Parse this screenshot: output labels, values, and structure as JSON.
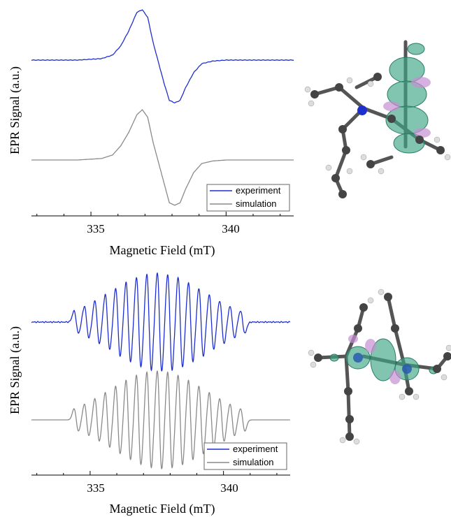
{
  "chart_data": [
    {
      "type": "line",
      "xlabel": "Magnetic Field (mT)",
      "ylabel": "EPR Signal (a.u.)",
      "xlim": [
        332.8,
        342.5
      ],
      "xticks": [
        335,
        340
      ],
      "yticks_shown": false,
      "legend_position": "bottom-right",
      "series": [
        {
          "name": "experiment",
          "color": "#1f2fcf",
          "offset": 1,
          "shape": "first-derivative, unresolved hyperfine",
          "x": [
            332.8,
            334.5,
            335.4,
            335.8,
            336.1,
            336.4,
            336.7,
            336.9,
            337.1,
            337.3,
            337.5,
            337.7,
            337.9,
            338.1,
            338.3,
            338.5,
            338.8,
            339.1,
            339.5,
            340.0,
            342.5
          ],
          "values": [
            0.0,
            0.0,
            0.03,
            0.1,
            0.28,
            0.58,
            0.95,
            1.0,
            0.85,
            0.35,
            -0.05,
            -0.45,
            -0.8,
            -0.85,
            -0.8,
            -0.55,
            -0.25,
            -0.07,
            -0.02,
            0.0,
            0.0
          ]
        },
        {
          "name": "simulation",
          "color": "#8a8a8a",
          "offset": 0,
          "shape": "first-derivative, unresolved hyperfine",
          "x": [
            332.8,
            334.5,
            335.4,
            335.8,
            336.1,
            336.4,
            336.7,
            336.9,
            337.1,
            337.3,
            337.5,
            337.7,
            337.9,
            338.1,
            338.3,
            338.5,
            338.8,
            339.1,
            339.5,
            340.0,
            342.5
          ],
          "values": [
            0.0,
            0.0,
            0.03,
            0.1,
            0.28,
            0.55,
            0.9,
            1.0,
            0.85,
            0.35,
            -0.05,
            -0.45,
            -0.85,
            -0.9,
            -0.85,
            -0.58,
            -0.25,
            -0.07,
            -0.02,
            0.0,
            0.0
          ]
        }
      ]
    },
    {
      "type": "line",
      "xlabel": "Magnetic Field (mT)",
      "ylabel": "EPR Signal (a.u.)",
      "xlim": [
        332.8,
        342.5
      ],
      "xticks": [
        335,
        340
      ],
      "yticks_shown": false,
      "legend_position": "bottom-right",
      "spectrum": {
        "center_mT": 337.6,
        "line_spacing_mT": 0.39,
        "line_count": 17,
        "shape": "resolved hyperfine multiplet, first-derivative lines"
      },
      "series": [
        {
          "name": "experiment",
          "color": "#1f2fcf",
          "offset": 1
        },
        {
          "name": "simulation",
          "color": "#8a8a8a",
          "offset": 0
        }
      ]
    }
  ],
  "molecules": [
    {
      "name": "spin-density-structure-1",
      "description_hidden": true
    },
    {
      "name": "spin-density-structure-2",
      "description_hidden": true
    }
  ]
}
